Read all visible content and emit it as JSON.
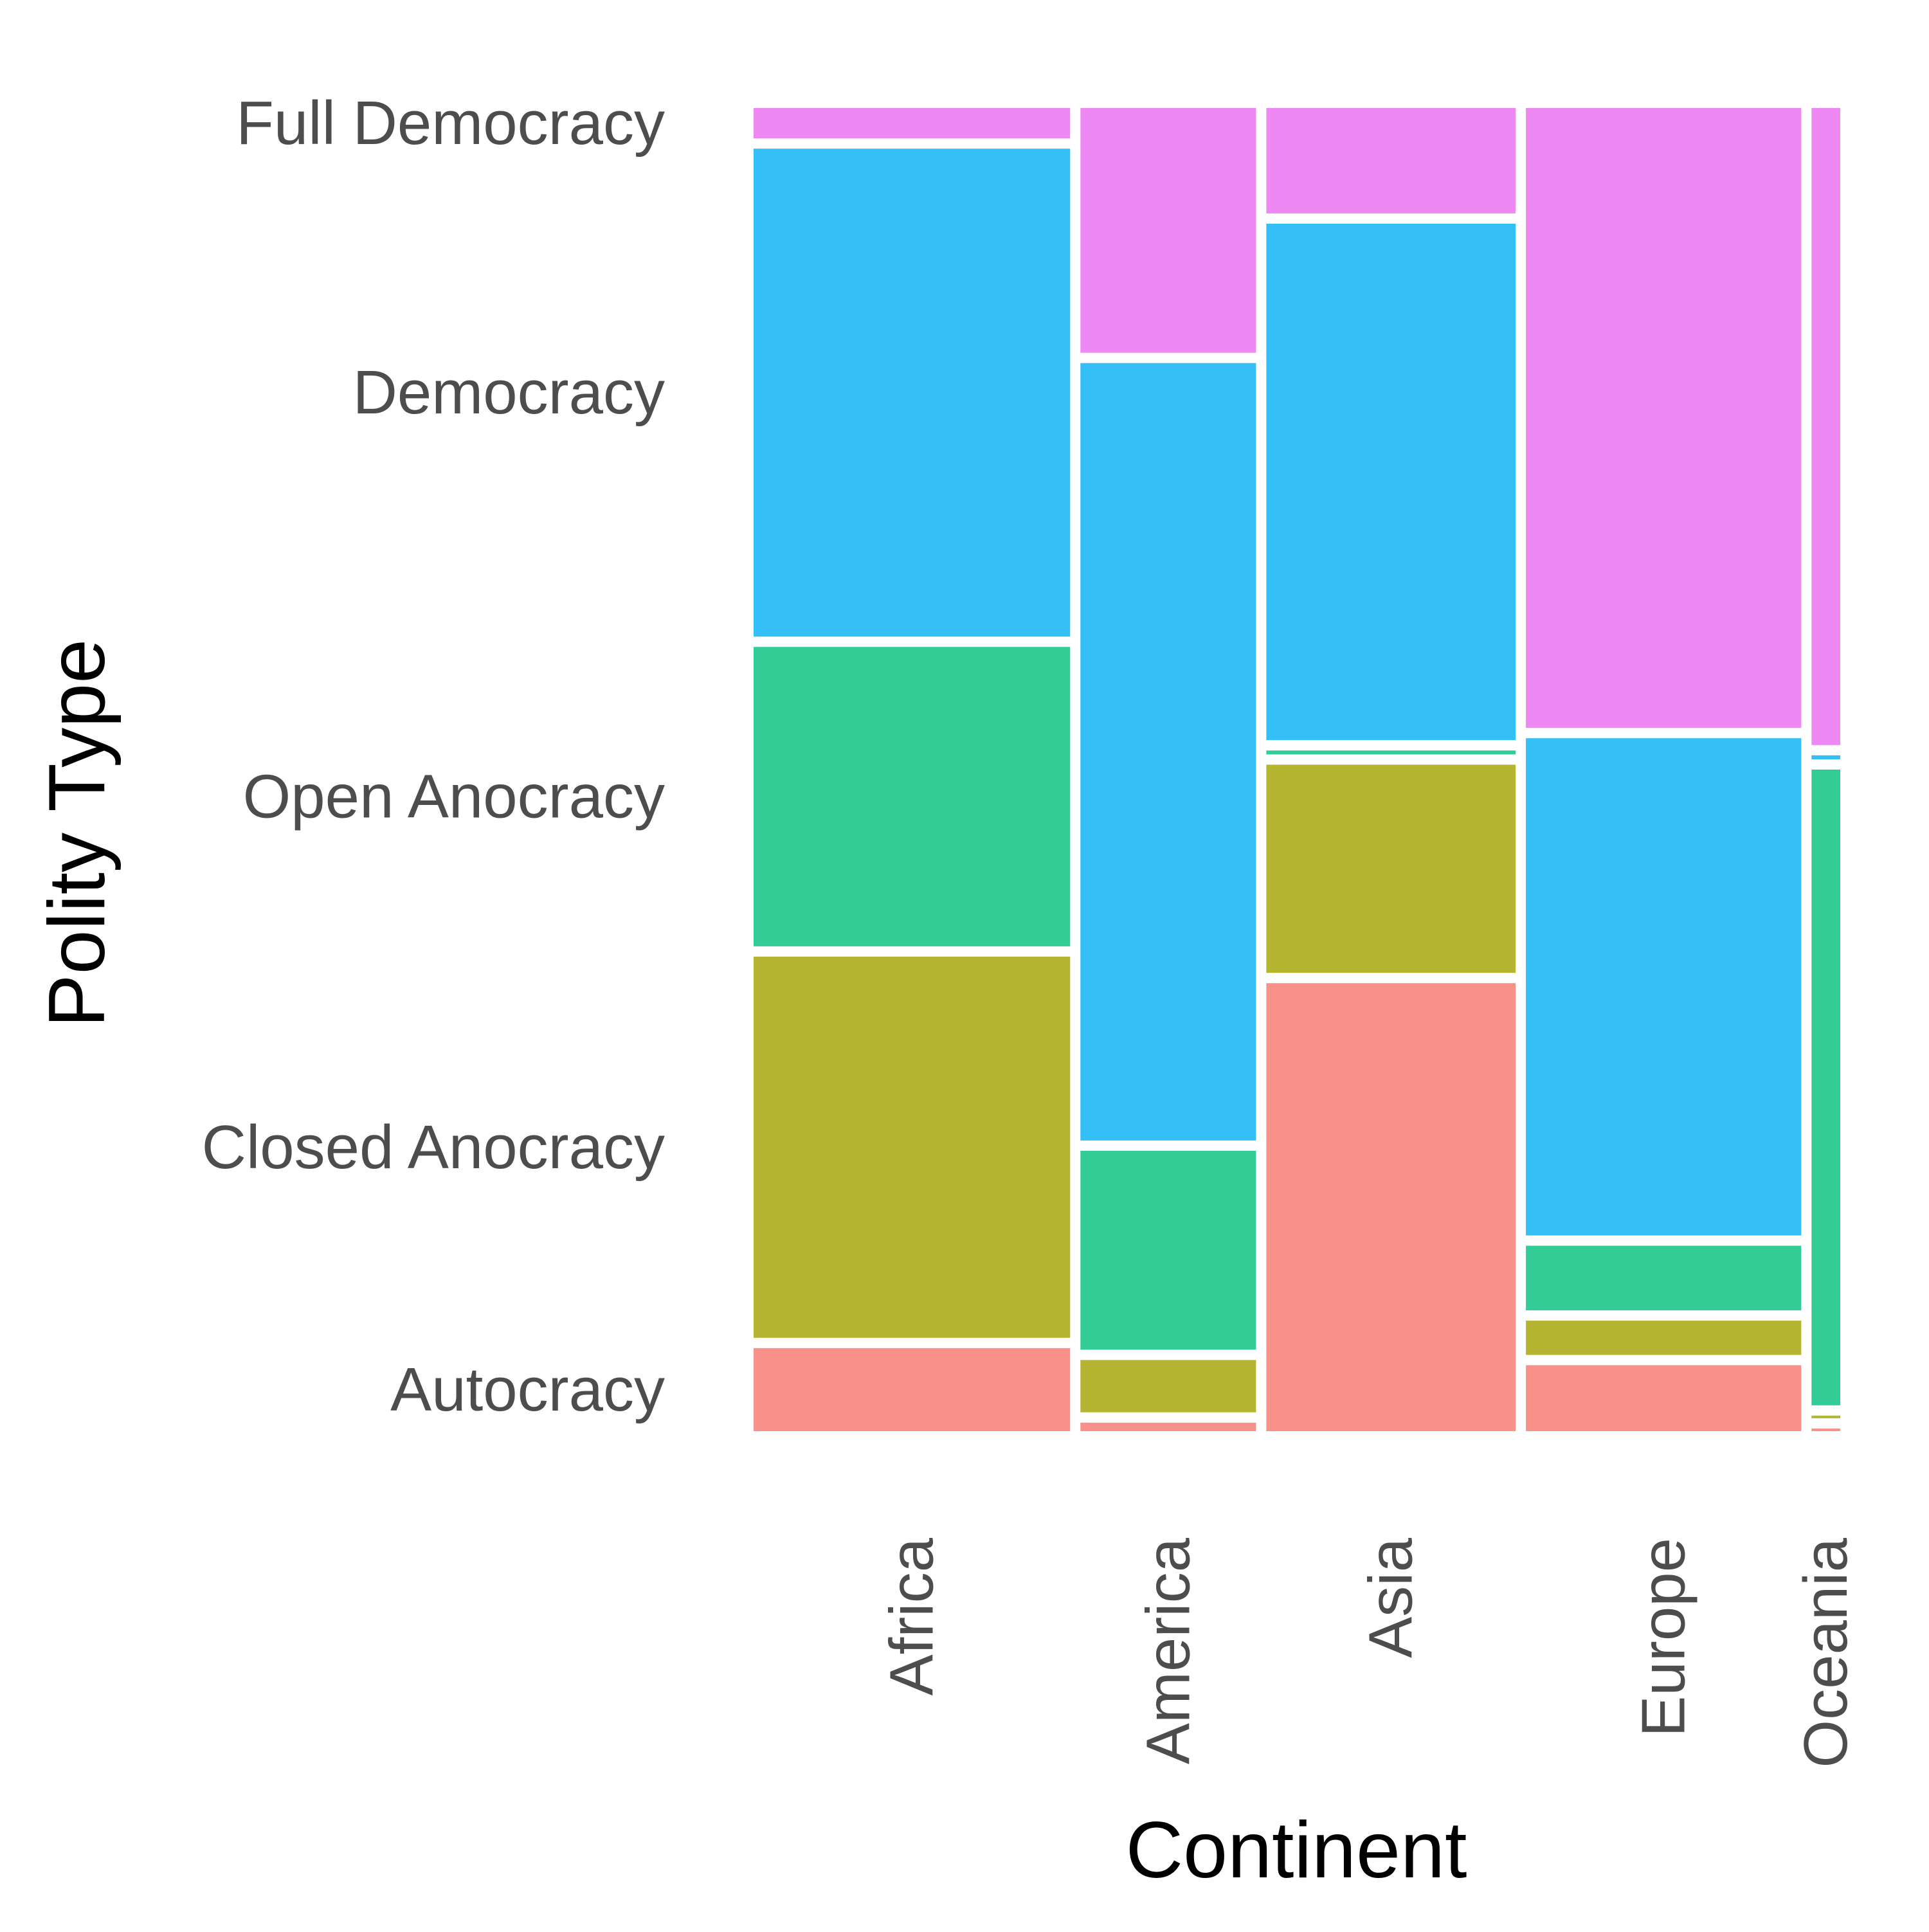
{
  "chart_data": {
    "type": "mosaic",
    "xlabel": "Continent",
    "ylabel": "Polity Type",
    "categories": [
      "Africa",
      "America",
      "Asia",
      "Europe",
      "Oceania"
    ],
    "column_shares": [
      0.292,
      0.162,
      0.23,
      0.254,
      0.0265
    ],
    "levels_bottom_to_top": [
      "Autocracy",
      "Closed Anocracy",
      "Open Anocracy",
      "Democracy",
      "Full Democracy"
    ],
    "series": [
      {
        "name": "Autocracy",
        "color": "#F8918A",
        "values": [
          0.063,
          0.0065,
          0.34,
          0.05,
          0.002
        ]
      },
      {
        "name": "Closed Anocracy",
        "color": "#B5B531",
        "values": [
          0.289,
          0.04,
          0.158,
          0.026,
          0.002
        ]
      },
      {
        "name": "Open Anocracy",
        "color": "#34CC96",
        "values": [
          0.227,
          0.152,
          0.003,
          0.049,
          0.481
        ]
      },
      {
        "name": "Democracy",
        "color": "#34BFF6",
        "values": [
          0.37,
          0.594,
          0.392,
          0.377,
          0.003
        ]
      },
      {
        "name": "Full Democracy",
        "color": "#EE89F3",
        "values": [
          0.023,
          0.187,
          0.08,
          0.47,
          0.482
        ]
      }
    ],
    "y_tick_labels": [
      "Full Democracy",
      "Democracy",
      "Open Anocracy",
      "Closed Anocracy",
      "Autocracy"
    ],
    "legend": "none",
    "grid": false
  }
}
